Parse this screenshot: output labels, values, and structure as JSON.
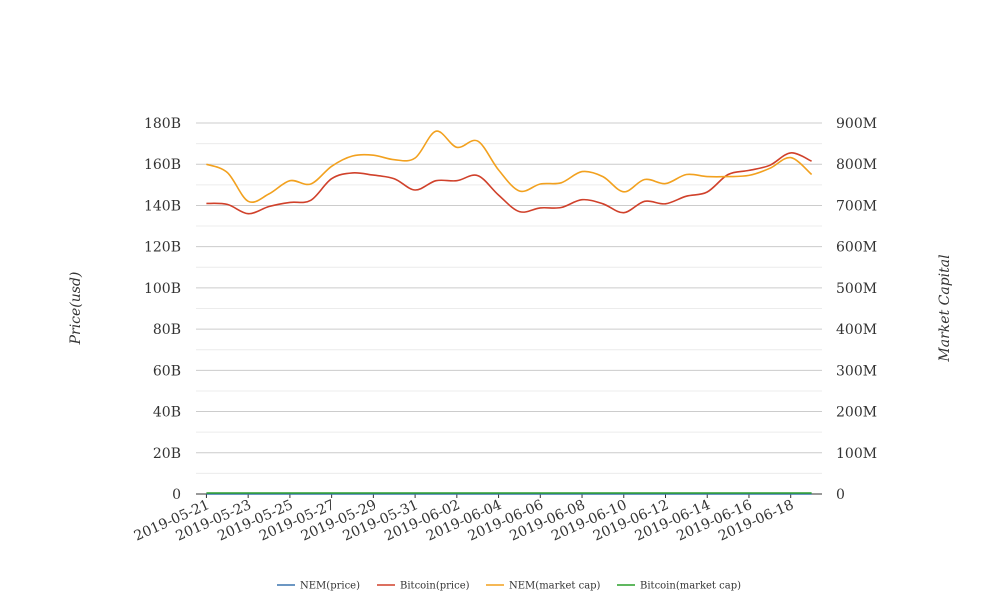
{
  "chart_data": {
    "type": "line",
    "title": "",
    "xlabel": "",
    "ylabel": "Price(usd)",
    "y2label": "Market Capital",
    "ylim": [
      0,
      180000000000
    ],
    "y2lim": [
      0,
      900000000
    ],
    "yticks": [
      "0",
      "20B",
      "40B",
      "60B",
      "80B",
      "100B",
      "120B",
      "140B",
      "160B",
      "180B"
    ],
    "y2ticks": [
      "0",
      "100M",
      "200M",
      "300M",
      "400M",
      "500M",
      "600M",
      "700M",
      "800M",
      "900M"
    ],
    "xtick_labels": [
      "2019-05-21",
      "2019-05-23",
      "2019-05-25",
      "2019-05-27",
      "2019-05-29",
      "2019-05-31",
      "2019-06-02",
      "2019-06-04",
      "2019-06-06",
      "2019-06-08",
      "2019-06-10",
      "2019-06-12",
      "2019-06-14",
      "2019-06-16",
      "2019-06-18"
    ],
    "x": [
      "2019-05-21",
      "2019-05-22",
      "2019-05-23",
      "2019-05-24",
      "2019-05-25",
      "2019-05-26",
      "2019-05-27",
      "2019-05-28",
      "2019-05-29",
      "2019-05-30",
      "2019-05-31",
      "2019-06-01",
      "2019-06-02",
      "2019-06-03",
      "2019-06-04",
      "2019-06-05",
      "2019-06-06",
      "2019-06-07",
      "2019-06-08",
      "2019-06-09",
      "2019-06-10",
      "2019-06-11",
      "2019-06-12",
      "2019-06-13",
      "2019-06-14",
      "2019-06-15",
      "2019-06-16",
      "2019-06-17",
      "2019-06-18",
      "2019-06-19"
    ],
    "grid": true,
    "legend_position": "bottom",
    "series": [
      {
        "name": "NEM(price)",
        "axis": "left",
        "color": "#3b75af",
        "values": [
          0.17,
          0.17,
          0.16,
          0.15,
          0.15,
          0.15,
          0.16,
          0.16,
          0.16,
          0.16,
          0.16,
          0.17,
          0.17,
          0.17,
          0.16,
          0.15,
          0.15,
          0.15,
          0.15,
          0.15,
          0.15,
          0.15,
          0.15,
          0.15,
          0.15,
          0.15,
          0.15,
          0.16,
          0.16,
          0.15
        ]
      },
      {
        "name": "Bitcoin(price)",
        "axis": "left",
        "color": "#d0412b",
        "values": [
          141000000000,
          140500000000,
          136000000000,
          139500000000,
          141500000000,
          142500000000,
          153000000000,
          155800000000,
          154700000000,
          153000000000,
          147500000000,
          152000000000,
          152000000000,
          154500000000,
          145000000000,
          137000000000,
          138800000000,
          139000000000,
          142800000000,
          140800000000,
          136500000000,
          142000000000,
          140800000000,
          144500000000,
          146500000000,
          155000000000,
          157000000000,
          159500000000,
          165500000000,
          161500000000
        ]
      },
      {
        "name": "NEM(market cap)",
        "axis": "right",
        "color": "#f2a11f",
        "values": [
          800000000,
          780000000,
          710000000,
          728000000,
          760000000,
          752000000,
          795000000,
          820000000,
          822000000,
          811000000,
          815000000,
          880000000,
          841000000,
          856000000,
          786000000,
          735000000,
          752000000,
          755000000,
          782000000,
          770000000,
          733000000,
          763000000,
          753000000,
          775000000,
          770000000,
          770000000,
          773000000,
          790000000,
          816000000,
          775000000
        ]
      },
      {
        "name": "Bitcoin(market cap)",
        "axis": "right",
        "color": "#2ca02c",
        "values": [
          2500000,
          2500000,
          2500000,
          2500000,
          2500000,
          2500000,
          2500000,
          2500000,
          2500000,
          2500000,
          2500000,
          2500000,
          2500000,
          2500000,
          2500000,
          2500000,
          2500000,
          2500000,
          2500000,
          2500000,
          2500000,
          2500000,
          2500000,
          2500000,
          2500000,
          2500000,
          2500000,
          2500000,
          2500000,
          2500000
        ]
      }
    ]
  }
}
